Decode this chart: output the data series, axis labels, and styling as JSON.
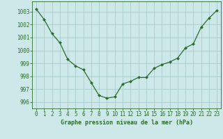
{
  "x": [
    0,
    1,
    2,
    3,
    4,
    5,
    6,
    7,
    8,
    9,
    10,
    11,
    12,
    13,
    14,
    15,
    16,
    17,
    18,
    19,
    20,
    21,
    22,
    23
  ],
  "y": [
    1003.2,
    1002.4,
    1001.3,
    1000.6,
    999.3,
    998.8,
    998.5,
    997.5,
    996.5,
    996.3,
    996.4,
    997.4,
    997.6,
    997.9,
    997.9,
    998.6,
    998.9,
    999.1,
    999.4,
    1000.2,
    1000.5,
    1001.8,
    1002.5,
    1003.1
  ],
  "line_color": "#2d6b2d",
  "marker": "D",
  "marker_size": 2.0,
  "bg_color": "#cce8e8",
  "grid_color": "#aacccc",
  "xlabel": "Graphe pression niveau de la mer (hPa)",
  "xlabel_color": "#2d6b2d",
  "tick_color": "#2d6b2d",
  "ylim": [
    995.5,
    1003.8
  ],
  "xlim": [
    -0.5,
    23.5
  ],
  "yticks": [
    996,
    997,
    998,
    999,
    1000,
    1001,
    1002,
    1003
  ],
  "xticks": [
    0,
    1,
    2,
    3,
    4,
    5,
    6,
    7,
    8,
    9,
    10,
    11,
    12,
    13,
    14,
    15,
    16,
    17,
    18,
    19,
    20,
    21,
    22,
    23
  ],
  "tick_fontsize": 5.5,
  "xlabel_fontsize": 6.0,
  "linewidth": 0.9
}
